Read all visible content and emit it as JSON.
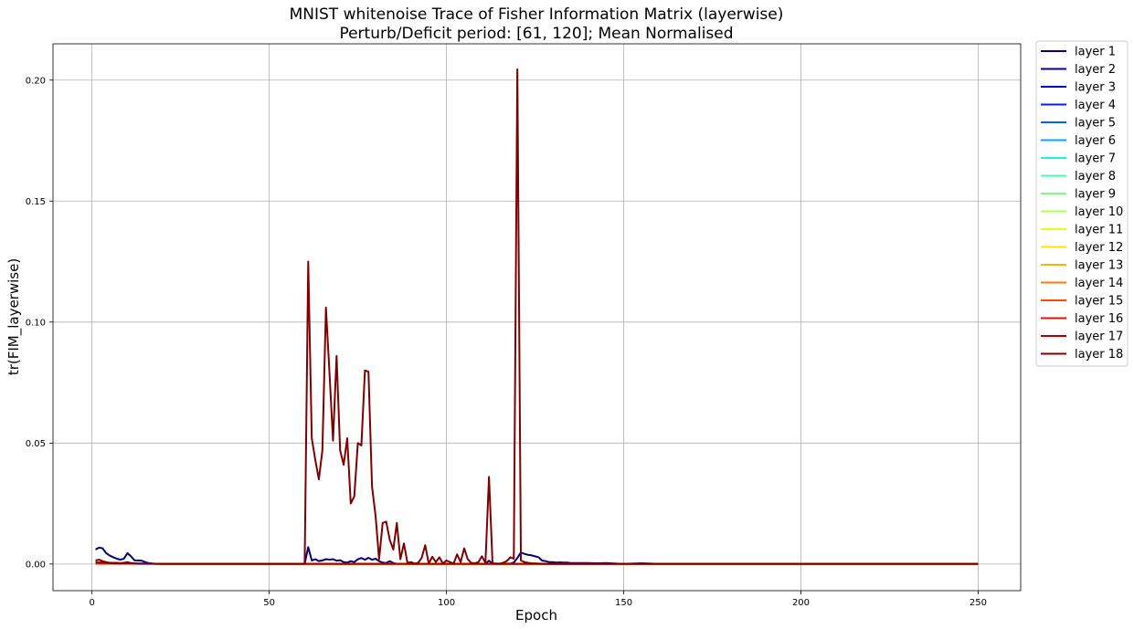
{
  "chart_data": {
    "type": "line",
    "title": "MNIST whitenoise Trace of Fisher Information Matrix (layerwise)",
    "subtitle": "Perturb/Deficit period: [61, 120]; Mean Normalised",
    "xlabel": "Epoch",
    "ylabel": "tr(FIM_layerwise)",
    "xlim": [
      -11,
      262
    ],
    "ylim": [
      -0.011,
      0.215
    ],
    "xticks": [
      0,
      50,
      100,
      150,
      200,
      250
    ],
    "xtick_labels": [
      "0",
      "50",
      "100",
      "150",
      "200",
      "250"
    ],
    "yticks": [
      0.0,
      0.05,
      0.1,
      0.15,
      0.2
    ],
    "ytick_labels": [
      "0.00",
      "0.05",
      "0.10",
      "0.15",
      "0.20"
    ],
    "grid": true,
    "legend_position": "outside-right",
    "x_range": [
      1,
      250
    ],
    "series": [
      {
        "name": "layer 1",
        "color": "#00007f",
        "points": [
          [
            1,
            0.006
          ],
          [
            2,
            0.0068
          ],
          [
            3,
            0.0065
          ],
          [
            4,
            0.0045
          ],
          [
            5,
            0.0035
          ],
          [
            6,
            0.0028
          ],
          [
            7,
            0.0022
          ],
          [
            8,
            0.0018
          ],
          [
            9,
            0.0022
          ],
          [
            10,
            0.0045
          ],
          [
            11,
            0.0032
          ],
          [
            12,
            0.0015
          ],
          [
            13,
            0.0015
          ],
          [
            14,
            0.0014
          ],
          [
            15,
            0.0008
          ],
          [
            16,
            0.0004
          ],
          [
            17,
            0.0002
          ],
          [
            18,
            0.0001
          ],
          [
            60,
            0.0001
          ],
          [
            61,
            0.007
          ],
          [
            62,
            0.0015
          ],
          [
            63,
            0.002
          ],
          [
            64,
            0.0012
          ],
          [
            65,
            0.0015
          ],
          [
            66,
            0.002
          ],
          [
            67,
            0.0018
          ],
          [
            68,
            0.002
          ],
          [
            69,
            0.0014
          ],
          [
            70,
            0.0016
          ],
          [
            71,
            0.0008
          ],
          [
            72,
            0.0006
          ],
          [
            73,
            0.0012
          ],
          [
            74,
            0.0008
          ],
          [
            75,
            0.002
          ],
          [
            76,
            0.0025
          ],
          [
            77,
            0.0018
          ],
          [
            78,
            0.0026
          ],
          [
            79,
            0.0018
          ],
          [
            80,
            0.0022
          ],
          [
            81,
            0.0012
          ],
          [
            82,
            0.0006
          ],
          [
            83,
            0.0004
          ],
          [
            84,
            0.0012
          ],
          [
            85,
            0.0004
          ],
          [
            86,
            0.0001
          ],
          [
            111,
            0.0001
          ],
          [
            112,
            0.0014
          ],
          [
            113,
            0.0002
          ],
          [
            118,
            0.0002
          ],
          [
            119,
            0.0006
          ],
          [
            120,
            0.0025
          ],
          [
            121,
            0.0048
          ],
          [
            122,
            0.0042
          ],
          [
            123,
            0.0038
          ],
          [
            124,
            0.0036
          ],
          [
            125,
            0.0032
          ],
          [
            126,
            0.0028
          ],
          [
            127,
            0.0014
          ],
          [
            128,
            0.0012
          ],
          [
            129,
            0.0008
          ],
          [
            130,
            0.0008
          ],
          [
            131,
            0.0006
          ],
          [
            132,
            0.0007
          ],
          [
            133,
            0.0006
          ],
          [
            134,
            0.0006
          ],
          [
            135,
            0.0004
          ],
          [
            140,
            0.0004
          ],
          [
            142,
            0.0003
          ],
          [
            145,
            0.0004
          ],
          [
            148,
            0.0002
          ],
          [
            150,
            0.0001
          ],
          [
            155,
            0.0003
          ],
          [
            160,
            0.0001
          ],
          [
            250,
            0.0001
          ]
        ]
      },
      {
        "name": "layer 2",
        "color": "#00009f",
        "points": [
          [
            1,
            0.0006
          ],
          [
            20,
            0.0001
          ],
          [
            250,
            0.0001
          ]
        ]
      },
      {
        "name": "layer 3",
        "color": "#0000d4",
        "points": [
          [
            1,
            0.0005
          ],
          [
            20,
            0.0001
          ],
          [
            250,
            0.0001
          ]
        ]
      },
      {
        "name": "layer 4",
        "color": "#0020ff",
        "points": [
          [
            1,
            0.0004
          ],
          [
            20,
            0.0001
          ],
          [
            250,
            0.0001
          ]
        ]
      },
      {
        "name": "layer 5",
        "color": "#0064ff",
        "points": [
          [
            1,
            0.0004
          ],
          [
            20,
            0.0001
          ],
          [
            250,
            0.0001
          ]
        ]
      },
      {
        "name": "layer 6",
        "color": "#00a8ff",
        "points": [
          [
            1,
            0.0003
          ],
          [
            20,
            0.0001
          ],
          [
            250,
            0.0001
          ]
        ]
      },
      {
        "name": "layer 7",
        "color": "#19f2de",
        "points": [
          [
            1,
            0.0003
          ],
          [
            20,
            0.0001
          ],
          [
            250,
            0.0001
          ]
        ]
      },
      {
        "name": "layer 8",
        "color": "#49ffad",
        "points": [
          [
            1,
            0.0003
          ],
          [
            20,
            0.0001
          ],
          [
            250,
            0.0001
          ]
        ]
      },
      {
        "name": "layer 9",
        "color": "#7dff7a",
        "points": [
          [
            1,
            0.0002
          ],
          [
            20,
            0.0001
          ],
          [
            250,
            0.0001
          ]
        ]
      },
      {
        "name": "layer 10",
        "color": "#adff49",
        "points": [
          [
            1,
            0.0002
          ],
          [
            20,
            0.0001
          ],
          [
            250,
            0.0001
          ]
        ]
      },
      {
        "name": "layer 11",
        "color": "#e4ff13",
        "points": [
          [
            1,
            0.0002
          ],
          [
            20,
            0.0001
          ],
          [
            250,
            0.0001
          ]
        ]
      },
      {
        "name": "layer 12",
        "color": "#ffe500",
        "points": [
          [
            1,
            0.0002
          ],
          [
            20,
            0.0001
          ],
          [
            250,
            0.0001
          ]
        ]
      },
      {
        "name": "layer 13",
        "color": "#ffb000",
        "points": [
          [
            1,
            0.0002
          ],
          [
            20,
            0.0001
          ],
          [
            250,
            0.0001
          ]
        ]
      },
      {
        "name": "layer 14",
        "color": "#ff7a00",
        "points": [
          [
            1,
            0.0002
          ],
          [
            20,
            0.0001
          ],
          [
            250,
            0.0001
          ]
        ]
      },
      {
        "name": "layer 15",
        "color": "#ff4a00",
        "points": [
          [
            1,
            0.0002
          ],
          [
            20,
            0.0001
          ],
          [
            250,
            0.0001
          ]
        ]
      },
      {
        "name": "layer 16",
        "color": "#e31400",
        "points": [
          [
            1,
            0.0002
          ],
          [
            20,
            0.0001
          ],
          [
            250,
            0.0001
          ]
        ]
      },
      {
        "name": "layer 17",
        "color": "#b00000",
        "points": [
          [
            1,
            0.0008
          ],
          [
            8,
            0.0002
          ],
          [
            20,
            0.0001
          ],
          [
            250,
            0.0001
          ]
        ]
      },
      {
        "name": "layer 18",
        "color": "#7f0000",
        "points": [
          [
            1,
            0.0015
          ],
          [
            2,
            0.0018
          ],
          [
            3,
            0.0012
          ],
          [
            4,
            0.0008
          ],
          [
            5,
            0.0005
          ],
          [
            6,
            0.0003
          ],
          [
            8,
            0.0002
          ],
          [
            10,
            0.0008
          ],
          [
            11,
            0.0004
          ],
          [
            13,
            0.0001
          ],
          [
            60,
            0.0001
          ],
          [
            61,
            0.125
          ],
          [
            62,
            0.052
          ],
          [
            63,
            0.043
          ],
          [
            64,
            0.035
          ],
          [
            65,
            0.047
          ],
          [
            66,
            0.106
          ],
          [
            67,
            0.079
          ],
          [
            68,
            0.051
          ],
          [
            69,
            0.086
          ],
          [
            70,
            0.047
          ],
          [
            71,
            0.041
          ],
          [
            72,
            0.052
          ],
          [
            73,
            0.025
          ],
          [
            74,
            0.028
          ],
          [
            75,
            0.05
          ],
          [
            76,
            0.049
          ],
          [
            77,
            0.08
          ],
          [
            78,
            0.0795
          ],
          [
            79,
            0.032
          ],
          [
            80,
            0.02
          ],
          [
            81,
            0.002
          ],
          [
            82,
            0.017
          ],
          [
            83,
            0.0175
          ],
          [
            84,
            0.01
          ],
          [
            85,
            0.006
          ],
          [
            86,
            0.017
          ],
          [
            87,
            0.002
          ],
          [
            88,
            0.0085
          ],
          [
            89,
            0.0005
          ],
          [
            90,
            0.0008
          ],
          [
            91,
            0.0002
          ],
          [
            92,
            0.0005
          ],
          [
            93,
            0.0025
          ],
          [
            94,
            0.0078
          ],
          [
            95,
            0.0002
          ],
          [
            96,
            0.003
          ],
          [
            97,
            0.0008
          ],
          [
            98,
            0.0028
          ],
          [
            99,
            0.0002
          ],
          [
            100,
            0.0015
          ],
          [
            101,
            0.0008
          ],
          [
            102,
            0.0002
          ],
          [
            103,
            0.004
          ],
          [
            104,
            0.0008
          ],
          [
            105,
            0.0065
          ],
          [
            106,
            0.002
          ],
          [
            107,
            0.0005
          ],
          [
            108,
            0.0003
          ],
          [
            109,
            0.0008
          ],
          [
            110,
            0.0032
          ],
          [
            111,
            0.0005
          ],
          [
            112,
            0.036
          ],
          [
            113,
            0.0003
          ],
          [
            114,
            0.0002
          ],
          [
            115,
            0.0001
          ],
          [
            116,
            0.0005
          ],
          [
            117,
            0.0012
          ],
          [
            118,
            0.0028
          ],
          [
            119,
            0.0022
          ],
          [
            120,
            0.2045
          ],
          [
            121,
            0.0015
          ],
          [
            122,
            0.0008
          ],
          [
            123,
            0.0005
          ],
          [
            124,
            0.0003
          ],
          [
            126,
            0.0002
          ],
          [
            128,
            0.0001
          ],
          [
            250,
            0.0001
          ]
        ]
      }
    ]
  }
}
